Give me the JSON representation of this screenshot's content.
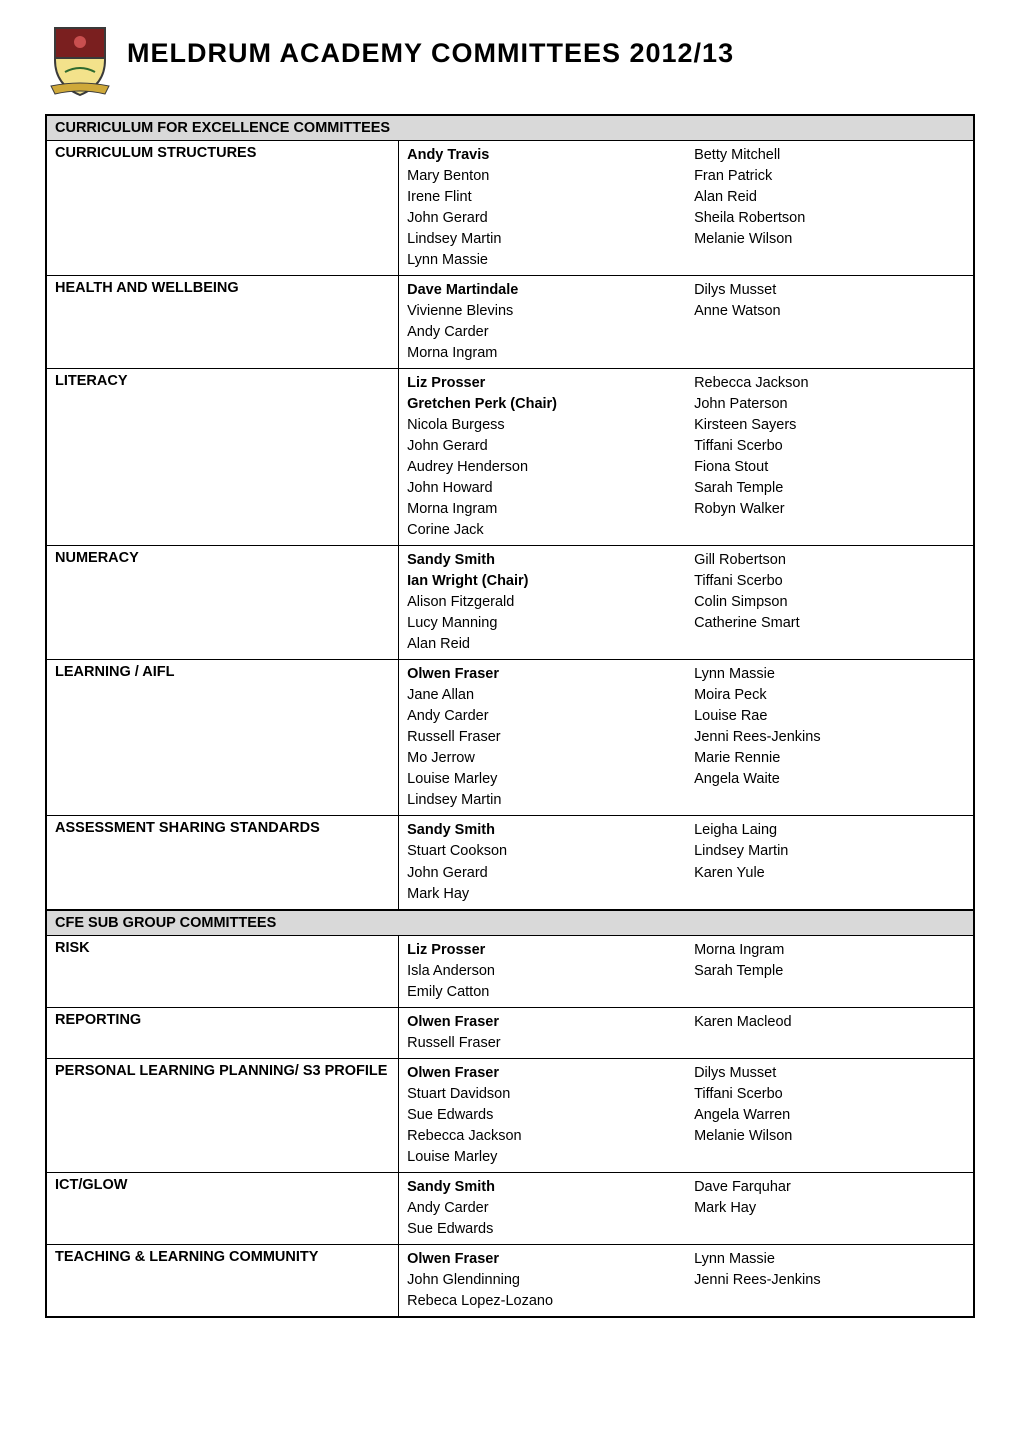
{
  "page_title": "MELDRUM ACADEMY COMMITTEES 2012/13",
  "logo": {
    "alt": "Meldrum Academy crest",
    "shield_top_color": "#7a1f1f",
    "shield_bottom_color": "#f3e28b",
    "banner_color": "#cfa93a",
    "outer_stroke": "#3a3a3a"
  },
  "colors": {
    "section_header_bg": "#d9d9d9",
    "border": "#000000",
    "text": "#000000",
    "background": "#ffffff"
  },
  "sections": [
    {
      "header": "CURRICULUM FOR EXCELLENCE COMMITTEES",
      "rows": [
        {
          "label": "CURRICULUM STRUCTURES",
          "col1": [
            {
              "name": "Andy Travis",
              "lead": true
            },
            {
              "name": "Mary Benton"
            },
            {
              "name": "Irene Flint"
            },
            {
              "name": "John Gerard"
            },
            {
              "name": "Lindsey Martin"
            },
            {
              "name": "Lynn Massie"
            }
          ],
          "col2": [
            {
              "name": "Betty Mitchell"
            },
            {
              "name": "Fran Patrick"
            },
            {
              "name": "Alan Reid"
            },
            {
              "name": "Sheila Robertson"
            },
            {
              "name": "Melanie Wilson"
            }
          ]
        },
        {
          "label": "HEALTH AND WELLBEING",
          "col1": [
            {
              "name": "Dave Martindale",
              "lead": true
            },
            {
              "name": "Vivienne Blevins"
            },
            {
              "name": "Andy Carder"
            },
            {
              "name": "Morna Ingram"
            }
          ],
          "col2": [
            {
              "name": "Dilys Musset"
            },
            {
              "name": "Anne Watson"
            }
          ]
        },
        {
          "label": "LITERACY",
          "col1": [
            {
              "name": "Liz Prosser",
              "lead": true
            },
            {
              "name": "Gretchen Perk (Chair)",
              "lead": true
            },
            {
              "name": "Nicola Burgess"
            },
            {
              "name": "John Gerard"
            },
            {
              "name": "Audrey Henderson"
            },
            {
              "name": "John Howard"
            },
            {
              "name": "Morna Ingram"
            },
            {
              "name": "Corine Jack"
            }
          ],
          "col2": [
            {
              "name": "Rebecca Jackson"
            },
            {
              "name": "John Paterson"
            },
            {
              "name": "Kirsteen Sayers"
            },
            {
              "name": "Tiffani Scerbo"
            },
            {
              "name": "Fiona Stout"
            },
            {
              "name": "Sarah Temple"
            },
            {
              "name": "Robyn Walker"
            }
          ]
        },
        {
          "label": "NUMERACY",
          "col1": [
            {
              "name": "Sandy Smith",
              "lead": true
            },
            {
              "name": "Ian Wright (Chair)",
              "lead": true
            },
            {
              "name": "Alison Fitzgerald"
            },
            {
              "name": "Lucy Manning"
            },
            {
              "name": "Alan Reid"
            }
          ],
          "col2": [
            {
              "name": "Gill Robertson"
            },
            {
              "name": "Tiffani Scerbo"
            },
            {
              "name": "Colin Simpson"
            },
            {
              "name": "Catherine Smart"
            }
          ]
        },
        {
          "label": "LEARNING / AIFL",
          "col1": [
            {
              "name": "Olwen Fraser",
              "lead": true
            },
            {
              "name": "Jane Allan"
            },
            {
              "name": "Andy Carder"
            },
            {
              "name": "Russell Fraser"
            },
            {
              "name": "Mo Jerrow"
            },
            {
              "name": "Louise Marley"
            },
            {
              "name": "Lindsey Martin"
            }
          ],
          "col2": [
            {
              "name": "Lynn Massie"
            },
            {
              "name": "Moira Peck"
            },
            {
              "name": "Louise Rae"
            },
            {
              "name": "Jenni Rees-Jenkins"
            },
            {
              "name": "Marie Rennie"
            },
            {
              "name": "Angela Waite"
            }
          ]
        },
        {
          "label": "ASSESSMENT SHARING STANDARDS",
          "col1": [
            {
              "name": "Sandy Smith",
              "lead": true
            },
            {
              "name": "Stuart Cookson"
            },
            {
              "name": "John Gerard"
            },
            {
              "name": "Mark Hay"
            }
          ],
          "col2": [
            {
              "name": "Leigha Laing"
            },
            {
              "name": "Lindsey Martin"
            },
            {
              "name": "Karen Yule"
            }
          ]
        }
      ]
    },
    {
      "header": "CFE SUB GROUP COMMITTEES",
      "rows": [
        {
          "label": "RISK",
          "col1": [
            {
              "name": "Liz Prosser",
              "lead": true
            },
            {
              "name": "Isla Anderson"
            },
            {
              "name": "Emily Catton"
            }
          ],
          "col2": [
            {
              "name": "Morna Ingram"
            },
            {
              "name": "Sarah Temple"
            }
          ]
        },
        {
          "label": "REPORTING",
          "col1": [
            {
              "name": "Olwen Fraser",
              "lead": true
            },
            {
              "name": "Russell Fraser"
            }
          ],
          "col2": [
            {
              "name": "Karen Macleod"
            }
          ]
        },
        {
          "label": "PERSONAL LEARNING PLANNING/ S3 PROFILE",
          "col1": [
            {
              "name": "Olwen Fraser",
              "lead": true
            },
            {
              "name": "Stuart Davidson"
            },
            {
              "name": "Sue Edwards"
            },
            {
              "name": "Rebecca Jackson"
            },
            {
              "name": "Louise Marley"
            }
          ],
          "col2": [
            {
              "name": "Dilys Musset"
            },
            {
              "name": "Tiffani Scerbo"
            },
            {
              "name": "Angela Warren"
            },
            {
              "name": "Melanie Wilson"
            }
          ]
        },
        {
          "label": "ICT/GLOW",
          "col1": [
            {
              "name": "Sandy Smith",
              "lead": true
            },
            {
              "name": "Andy Carder"
            },
            {
              "name": "Sue Edwards"
            }
          ],
          "col2": [
            {
              "name": "Dave Farquhar"
            },
            {
              "name": "Mark Hay"
            }
          ]
        },
        {
          "label": "TEACHING & LEARNING COMMUNITY",
          "col1": [
            {
              "name": "Olwen Fraser",
              "lead": true
            },
            {
              "name": "John Glendinning"
            },
            {
              "name": "Rebeca Lopez-Lozano"
            }
          ],
          "col2": [
            {
              "name": "Lynn Massie"
            },
            {
              "name": "Jenni Rees-Jenkins"
            }
          ]
        }
      ]
    }
  ]
}
